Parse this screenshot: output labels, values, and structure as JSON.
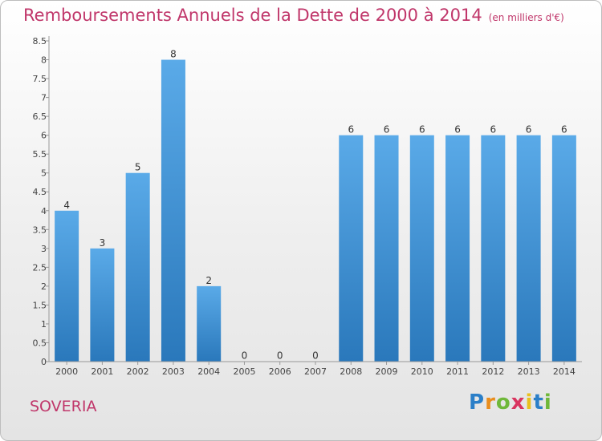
{
  "header": {
    "title": "Remboursements Annuels de la Dette de 2000 à 2014",
    "subtitle": "(en milliers d'€)"
  },
  "footer": {
    "town": "SOVERIA",
    "logo": [
      "P",
      "r",
      "o",
      "x",
      "i",
      "t",
      "i"
    ]
  },
  "colors": {
    "title": "#c0366a",
    "bar_top": "#5aaae8",
    "bar_bottom": "#2a78bb"
  },
  "chart_data": {
    "type": "bar",
    "title": "Remboursements Annuels de la Dette de 2000 à 2014",
    "xlabel": "",
    "ylabel": "",
    "categories": [
      "2000",
      "2001",
      "2002",
      "2003",
      "2004",
      "2005",
      "2006",
      "2007",
      "2008",
      "2009",
      "2010",
      "2011",
      "2012",
      "2013",
      "2014"
    ],
    "values": [
      4,
      3,
      5,
      8,
      2,
      0,
      0,
      0,
      6,
      6,
      6,
      6,
      6,
      6,
      6
    ],
    "data_labels": [
      "4",
      "3",
      "5",
      "8",
      "2",
      "0",
      "0",
      "0",
      "6",
      "6",
      "6",
      "6",
      "6",
      "6",
      "6"
    ],
    "ylim": [
      0,
      8.5
    ],
    "yticks": [
      0,
      0.5,
      1,
      1.5,
      2,
      2.5,
      3,
      3.5,
      4,
      4.5,
      5,
      5.5,
      6,
      6.5,
      7,
      7.5,
      8,
      8.5
    ],
    "ytick_labels": [
      "0",
      "0.5",
      "1",
      "1.5",
      "2",
      "2.5",
      "3",
      "3.5",
      "4",
      "4.5",
      "5",
      "5.5",
      "6",
      "6.5",
      "7",
      "7.5",
      "8",
      "8.5"
    ],
    "grid": false,
    "legend": "none"
  }
}
